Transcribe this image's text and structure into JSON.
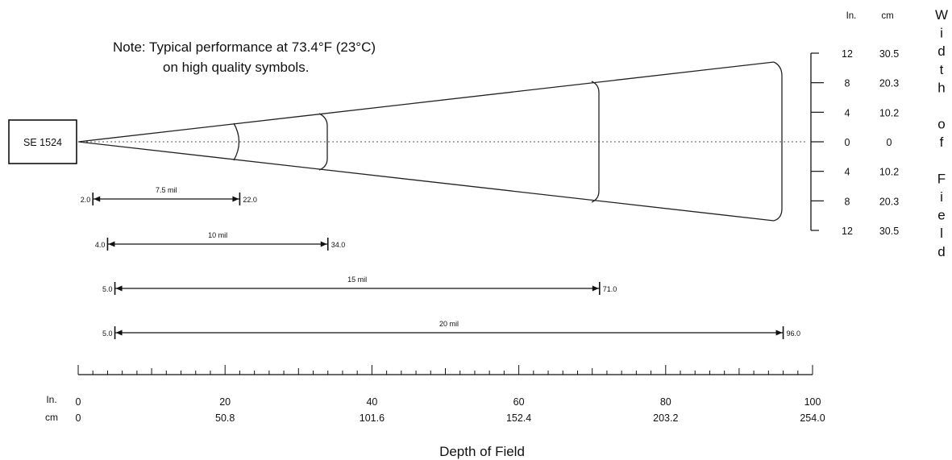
{
  "note": {
    "line1": "Note:  Typical performance at 73.4°F (23°C)",
    "line2": "on high quality symbols."
  },
  "scanner": {
    "label": "SE 1524"
  },
  "depth_axis": {
    "title": "Depth of Field",
    "in_label": "In.",
    "cm_label": "cm",
    "ticks": [
      {
        "in": "0",
        "cm": "0"
      },
      {
        "in": "20",
        "cm": "50.8"
      },
      {
        "in": "40",
        "cm": "101.6"
      },
      {
        "in": "60",
        "cm": "152.4"
      },
      {
        "in": "80",
        "cm": "203.2"
      },
      {
        "in": "100",
        "cm": "254.0"
      }
    ]
  },
  "width_axis": {
    "title_letters": [
      "W",
      "i",
      "d",
      "t",
      "h",
      "",
      "o",
      "f",
      "",
      "F",
      "i",
      "e",
      "l",
      "d"
    ],
    "in_header": "In.",
    "cm_header": "cm",
    "rows": [
      {
        "in": "12",
        "cm": "30.5"
      },
      {
        "in": "8",
        "cm": "20.3"
      },
      {
        "in": "4",
        "cm": "10.2"
      },
      {
        "in": "0",
        "cm": "0"
      },
      {
        "in": "4",
        "cm": "10.2"
      },
      {
        "in": "8",
        "cm": "20.3"
      },
      {
        "in": "12",
        "cm": "30.5"
      }
    ]
  },
  "ranges": [
    {
      "label": "7.5 mil",
      "min": 2.0,
      "max": 22.0,
      "min_text": "2.0",
      "max_text": "22.0"
    },
    {
      "label": "10 mil",
      "min": 4.0,
      "max": 34.0,
      "min_text": "4.0",
      "max_text": "34.0"
    },
    {
      "label": "15 mil",
      "min": 5.0,
      "max": 71.0,
      "min_text": "5.0",
      "max_text": "71.0"
    },
    {
      "label": "20 mil",
      "min": 5.0,
      "max": 96.0,
      "min_text": "5.0",
      "max_text": "96.0"
    }
  ]
}
